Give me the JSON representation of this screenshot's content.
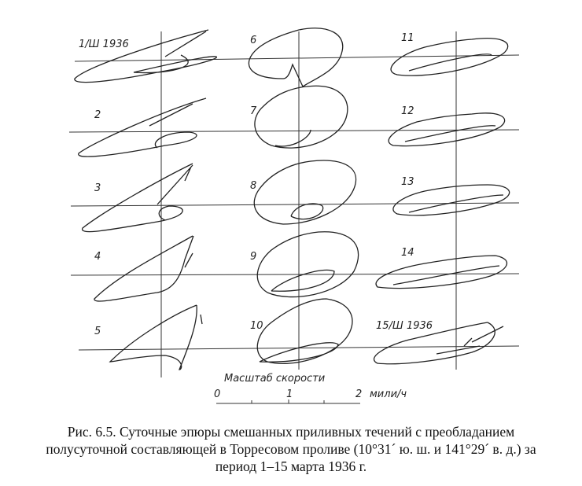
{
  "figure": {
    "panel_labels": [
      "1/Ш 1936",
      "2",
      "3",
      "4",
      "5",
      "6",
      "7",
      "8",
      "9",
      "10",
      "11",
      "12",
      "13",
      "14",
      "15/Ш 1936"
    ],
    "scale": {
      "title": "Масштаб скорости",
      "ticks": [
        "0",
        "1",
        "2"
      ],
      "unit": "мили/ч"
    }
  },
  "caption": {
    "line1": "Рис. 6.5. Суточные эпюры смешанных приливных течений с преобладанием",
    "line2": "полусуточной составляющей в Торресовом проливе (10°31´ ю. ш. и 141°29´ в. д.) за",
    "line3": "период 1–15 марта 1936 г."
  }
}
